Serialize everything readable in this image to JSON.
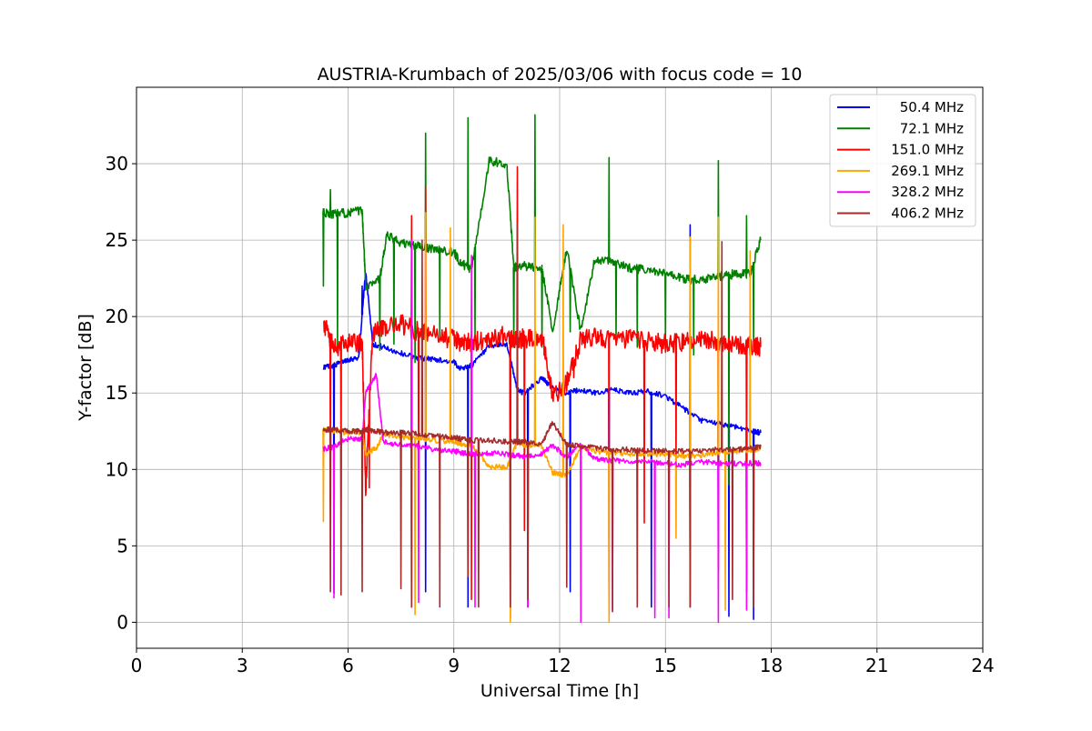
{
  "chart_data": {
    "type": "line",
    "title": "AUSTRIA-Krumbach of 2025/03/06 with focus code = 10",
    "xlabel": "Universal Time [h]",
    "ylabel": "Y-factor [dB]",
    "xlim": [
      0,
      24
    ],
    "ylim": [
      -1.7,
      35
    ],
    "xticks": [
      0,
      3,
      6,
      9,
      12,
      15,
      18,
      21,
      24
    ],
    "yticks": [
      0,
      5,
      10,
      15,
      20,
      25,
      30
    ],
    "grid": true,
    "legend_position": "top-right",
    "series": [
      {
        "name": "50.4 MHz",
        "color": "#0000ff",
        "x": [
          5.3,
          5.6,
          6.0,
          6.3,
          6.5,
          6.7,
          7.0,
          7.5,
          8.0,
          8.5,
          9.0,
          9.2,
          9.5,
          10.0,
          10.5,
          10.8,
          11.0,
          11.5,
          11.8,
          12.2,
          12.6,
          13.0,
          13.5,
          14.0,
          14.5,
          15.0,
          15.5,
          16.0,
          16.5,
          17.0,
          17.5,
          17.7
        ],
        "y": [
          16.7,
          16.8,
          17.2,
          17.3,
          23.0,
          18.2,
          18.0,
          17.6,
          17.3,
          17.2,
          17.0,
          16.6,
          16.8,
          18.0,
          18.2,
          15.2,
          15.0,
          16.0,
          15.3,
          15.0,
          15.2,
          15.0,
          15.2,
          15.0,
          15.1,
          14.8,
          14.0,
          13.2,
          13.0,
          12.8,
          12.5,
          12.4
        ],
        "spikes": [
          [
            5.6,
            1.9
          ],
          [
            6.4,
            22.0
          ],
          [
            7.8,
            1.0
          ],
          [
            8.2,
            2.0
          ],
          [
            9.4,
            1.0
          ],
          [
            10.6,
            0.3
          ],
          [
            11.1,
            1.0
          ],
          [
            12.3,
            2.0
          ],
          [
            13.4,
            0.5
          ],
          [
            14.6,
            1.0
          ],
          [
            15.7,
            26.0
          ],
          [
            15.7,
            1.0
          ],
          [
            16.5,
            3.4
          ],
          [
            16.8,
            0.4
          ],
          [
            17.3,
            2.0
          ],
          [
            17.5,
            0.2
          ]
        ]
      },
      {
        "name": "72.1 MHz",
        "color": "#008000",
        "x": [
          5.3,
          5.6,
          6.0,
          6.4,
          6.5,
          6.9,
          7.1,
          7.5,
          8.0,
          8.5,
          9.0,
          9.2,
          9.5,
          10.0,
          10.5,
          10.7,
          11.0,
          11.5,
          11.8,
          12.2,
          12.6,
          13.0,
          13.5,
          14.0,
          14.5,
          15.0,
          15.5,
          16.0,
          16.5,
          17.0,
          17.4,
          17.7
        ],
        "y": [
          26.8,
          26.7,
          26.8,
          26.9,
          22.0,
          22.5,
          25.3,
          24.8,
          24.6,
          24.4,
          24.2,
          23.5,
          23.1,
          30.2,
          30.0,
          23.2,
          23.3,
          23.1,
          19.0,
          24.5,
          19.0,
          23.8,
          23.5,
          23.2,
          23.0,
          22.8,
          22.5,
          22.4,
          22.6,
          22.8,
          22.8,
          25.0
        ],
        "spikes": [
          [
            5.3,
            22.0
          ],
          [
            5.5,
            28.3
          ],
          [
            5.7,
            18.0
          ],
          [
            6.9,
            17.8
          ],
          [
            7.3,
            18.2
          ],
          [
            7.9,
            17.0
          ],
          [
            8.2,
            32.0
          ],
          [
            8.6,
            18.5
          ],
          [
            9.4,
            33.0
          ],
          [
            9.6,
            18.5
          ],
          [
            10.7,
            18.0
          ],
          [
            11.3,
            33.2
          ],
          [
            11.5,
            18.0
          ],
          [
            12.3,
            19.0
          ],
          [
            13.4,
            30.4
          ],
          [
            13.6,
            18.5
          ],
          [
            14.2,
            18.0
          ],
          [
            15.0,
            18.0
          ],
          [
            15.8,
            17.5
          ],
          [
            16.5,
            30.2
          ],
          [
            16.8,
            9.0
          ],
          [
            17.3,
            26.6
          ],
          [
            17.5,
            18.0
          ]
        ]
      },
      {
        "name": "151.0 MHz",
        "color": "#ff0000",
        "x": [
          5.3,
          5.6,
          6.0,
          6.4,
          6.5,
          6.7,
          7.0,
          7.5,
          8.0,
          8.5,
          9.0,
          9.2,
          9.5,
          10.0,
          10.5,
          10.8,
          11.0,
          11.5,
          11.8,
          12.2,
          12.6,
          13.0,
          13.5,
          14.0,
          14.5,
          15.0,
          15.5,
          16.0,
          16.5,
          17.0,
          17.5,
          17.7
        ],
        "y": [
          19.6,
          18.0,
          18.2,
          18.3,
          8.8,
          19.0,
          19.2,
          19.5,
          19.0,
          18.8,
          18.5,
          18.2,
          18.3,
          18.6,
          18.8,
          18.5,
          18.6,
          18.7,
          14.8,
          15.6,
          18.5,
          18.7,
          18.5,
          18.5,
          18.4,
          18.2,
          18.3,
          18.6,
          18.4,
          18.2,
          18.0,
          18.0
        ],
        "spikes": [
          [
            5.5,
            7.8
          ],
          [
            5.8,
            8.0
          ],
          [
            6.6,
            8.8
          ],
          [
            7.8,
            26.6
          ],
          [
            8.0,
            8.5
          ],
          [
            8.2,
            28.5
          ],
          [
            9.5,
            1.5
          ],
          [
            10.6,
            3.0
          ],
          [
            10.8,
            29.8
          ],
          [
            11.0,
            6.0
          ],
          [
            12.4,
            16.0
          ],
          [
            13.4,
            8.0
          ],
          [
            14.4,
            6.5
          ],
          [
            15.3,
            10.0
          ],
          [
            16.5,
            10.0
          ],
          [
            17.3,
            10.0
          ]
        ]
      },
      {
        "name": "269.1 MHz",
        "color": "#ffa500",
        "x": [
          5.3,
          5.6,
          6.0,
          6.4,
          6.5,
          6.8,
          7.0,
          7.5,
          8.0,
          8.5,
          9.0,
          9.2,
          9.5,
          10.0,
          10.5,
          10.8,
          11.0,
          11.5,
          11.8,
          12.0,
          12.2,
          12.6,
          13.0,
          13.5,
          14.0,
          14.5,
          15.0,
          15.5,
          16.0,
          16.5,
          17.0,
          17.5,
          17.7
        ],
        "y": [
          12.6,
          12.5,
          12.4,
          12.4,
          11.0,
          11.4,
          12.3,
          12.1,
          12.0,
          11.9,
          11.8,
          11.7,
          11.6,
          10.2,
          10.1,
          11.8,
          11.6,
          11.5,
          9.8,
          9.7,
          9.6,
          11.5,
          11.2,
          11.1,
          11.0,
          11.0,
          11.0,
          10.9,
          10.9,
          11.1,
          11.2,
          11.3,
          11.4
        ],
        "spikes": [
          [
            5.3,
            6.6
          ],
          [
            7.9,
            0.5
          ],
          [
            8.2,
            26.8
          ],
          [
            8.9,
            25.8
          ],
          [
            10.6,
            0.0
          ],
          [
            11.3,
            26.5
          ],
          [
            12.1,
            26.0
          ],
          [
            13.4,
            0.0
          ],
          [
            15.3,
            5.5
          ],
          [
            15.7,
            25.2
          ],
          [
            16.5,
            26.5
          ],
          [
            16.7,
            0.8
          ],
          [
            17.4,
            24.3
          ]
        ]
      },
      {
        "name": "328.2 MHz",
        "color": "#ff00ff",
        "x": [
          5.3,
          5.6,
          6.0,
          6.4,
          6.5,
          6.8,
          7.0,
          7.5,
          8.0,
          8.5,
          9.0,
          9.2,
          9.5,
          10.0,
          10.5,
          10.8,
          11.0,
          11.5,
          11.8,
          12.2,
          12.6,
          13.0,
          13.5,
          14.0,
          14.5,
          15.0,
          15.5,
          16.0,
          16.5,
          17.0,
          17.5,
          17.7
        ],
        "y": [
          11.3,
          11.5,
          12.0,
          12.0,
          15.0,
          16.2,
          11.8,
          11.6,
          11.5,
          11.3,
          11.2,
          11.1,
          11.0,
          11.1,
          11.0,
          10.9,
          10.9,
          11.0,
          11.6,
          10.8,
          11.6,
          10.7,
          10.6,
          10.5,
          10.5,
          10.4,
          10.3,
          10.5,
          10.4,
          10.4,
          10.4,
          10.4
        ],
        "spikes": [
          [
            5.6,
            1.6
          ],
          [
            7.8,
            25.0
          ],
          [
            8.0,
            1.3
          ],
          [
            9.5,
            24.0
          ],
          [
            9.6,
            1.0
          ],
          [
            11.1,
            1.0
          ],
          [
            12.6,
            0.0
          ],
          [
            13.5,
            0.8
          ],
          [
            14.7,
            0.3
          ],
          [
            15.1,
            0.3
          ],
          [
            16.5,
            0.0
          ],
          [
            17.3,
            0.8
          ]
        ]
      },
      {
        "name": "406.2 MHz",
        "color": "#a52a2a",
        "x": [
          5.3,
          5.6,
          6.0,
          6.4,
          6.5,
          6.8,
          7.0,
          7.5,
          8.0,
          8.5,
          9.0,
          9.2,
          9.5,
          10.0,
          10.5,
          10.8,
          11.0,
          11.5,
          11.8,
          12.2,
          12.6,
          13.0,
          13.5,
          14.0,
          14.5,
          15.0,
          15.5,
          16.0,
          16.5,
          17.0,
          17.5,
          17.7
        ],
        "y": [
          12.6,
          12.6,
          12.5,
          12.5,
          12.6,
          12.5,
          12.4,
          12.4,
          12.3,
          12.2,
          12.1,
          12.0,
          11.9,
          11.9,
          11.8,
          11.8,
          11.8,
          11.7,
          13.1,
          11.6,
          11.5,
          11.4,
          11.3,
          11.3,
          11.2,
          11.2,
          11.2,
          11.2,
          11.3,
          11.3,
          11.4,
          11.5
        ],
        "spikes": [
          [
            5.5,
            2.0
          ],
          [
            5.8,
            1.8
          ],
          [
            6.4,
            2.0
          ],
          [
            7.5,
            2.2
          ],
          [
            7.8,
            1.0
          ],
          [
            8.1,
            25.0
          ],
          [
            8.6,
            1.0
          ],
          [
            9.4,
            3.0
          ],
          [
            9.7,
            1.0
          ],
          [
            10.6,
            1.0
          ],
          [
            10.8,
            26.0
          ],
          [
            11.1,
            1.5
          ],
          [
            12.2,
            2.3
          ],
          [
            13.5,
            0.7
          ],
          [
            14.2,
            1.0
          ],
          [
            15.1,
            1.0
          ],
          [
            15.7,
            1.0
          ],
          [
            16.6,
            24.9
          ],
          [
            16.9,
            1.5
          ],
          [
            17.5,
            1.0
          ]
        ]
      }
    ]
  }
}
